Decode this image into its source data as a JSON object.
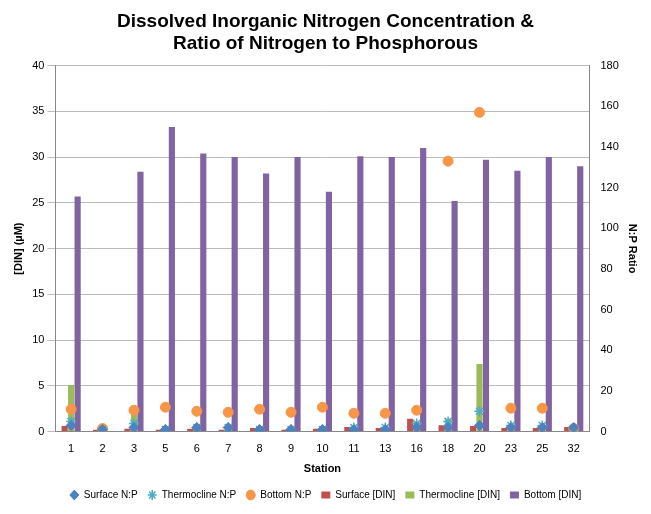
{
  "chart_data": {
    "type": "bar",
    "title": "Dissolved Inorganic Nitrogen Concentration & Ratio of Nitrogen to Phosphorous",
    "x_label": "Station",
    "y_label": "[DIN] (µM)",
    "y2_label": "N:P Ratio",
    "categories": [
      "1",
      "2",
      "3",
      "5",
      "6",
      "7",
      "8",
      "9",
      "10",
      "11",
      "13",
      "16",
      "18",
      "20",
      "23",
      "25",
      "32"
    ],
    "ylim": [
      0,
      40
    ],
    "yticks": [
      0,
      5,
      10,
      15,
      20,
      25,
      30,
      35,
      40
    ],
    "y2lim": [
      0,
      180
    ],
    "y2ticks": [
      0,
      20,
      40,
      60,
      80,
      100,
      120,
      140,
      160,
      180
    ],
    "grid": true,
    "legend": "bottom",
    "series": [
      {
        "name": "Surface [DIN]",
        "type": "bar",
        "color": "#c0504d",
        "values": [
          0.6,
          0.2,
          0.3,
          0.2,
          0.3,
          0.2,
          0.4,
          0.2,
          0.3,
          0.5,
          0.4,
          1.4,
          0.7,
          0.6,
          0.4,
          0.4,
          0.5
        ]
      },
      {
        "name": "Thermocline [DIN]",
        "type": "bar",
        "color": "#9bbb59",
        "values": [
          5.1,
          0.3,
          2.6,
          0.3,
          0.5,
          0.3,
          0.3,
          0.3,
          0.2,
          0.5,
          0.5,
          1.1,
          1.4,
          7.4,
          0.5,
          0.6,
          0.4
        ]
      },
      {
        "name": "Bottom [DIN]",
        "type": "bar",
        "color": "#8064a2",
        "values": [
          25.7,
          null,
          28.4,
          33.3,
          30.4,
          30.0,
          28.2,
          30.0,
          26.2,
          30.1,
          30.0,
          31.0,
          25.2,
          29.7,
          28.5,
          30.0,
          29.0
        ]
      },
      {
        "name": "Surface N:P",
        "type": "scatter",
        "axis": "y2",
        "color": "#4f81bd",
        "marker": "diamond",
        "values": [
          3,
          1,
          2,
          1,
          2,
          2,
          1,
          1,
          1,
          1,
          1,
          2,
          2,
          3,
          2,
          2,
          2
        ]
      },
      {
        "name": "Thermocline N:P",
        "type": "scatter",
        "axis": "y2",
        "color": "#4bacc6",
        "marker": "star",
        "values": [
          5,
          1,
          4,
          1,
          2,
          2,
          1,
          1,
          1,
          2,
          2,
          4,
          5,
          10,
          3,
          3,
          1
        ]
      },
      {
        "name": "Bottom N:P",
        "type": "scatter",
        "axis": "y2",
        "color": "#f79646",
        "marker": "circle",
        "values": [
          11,
          1.5,
          10.5,
          12,
          10,
          9.5,
          11,
          9.5,
          12,
          9,
          9,
          10.5,
          133,
          157,
          11.5,
          11.5,
          1.5
        ]
      }
    ]
  }
}
